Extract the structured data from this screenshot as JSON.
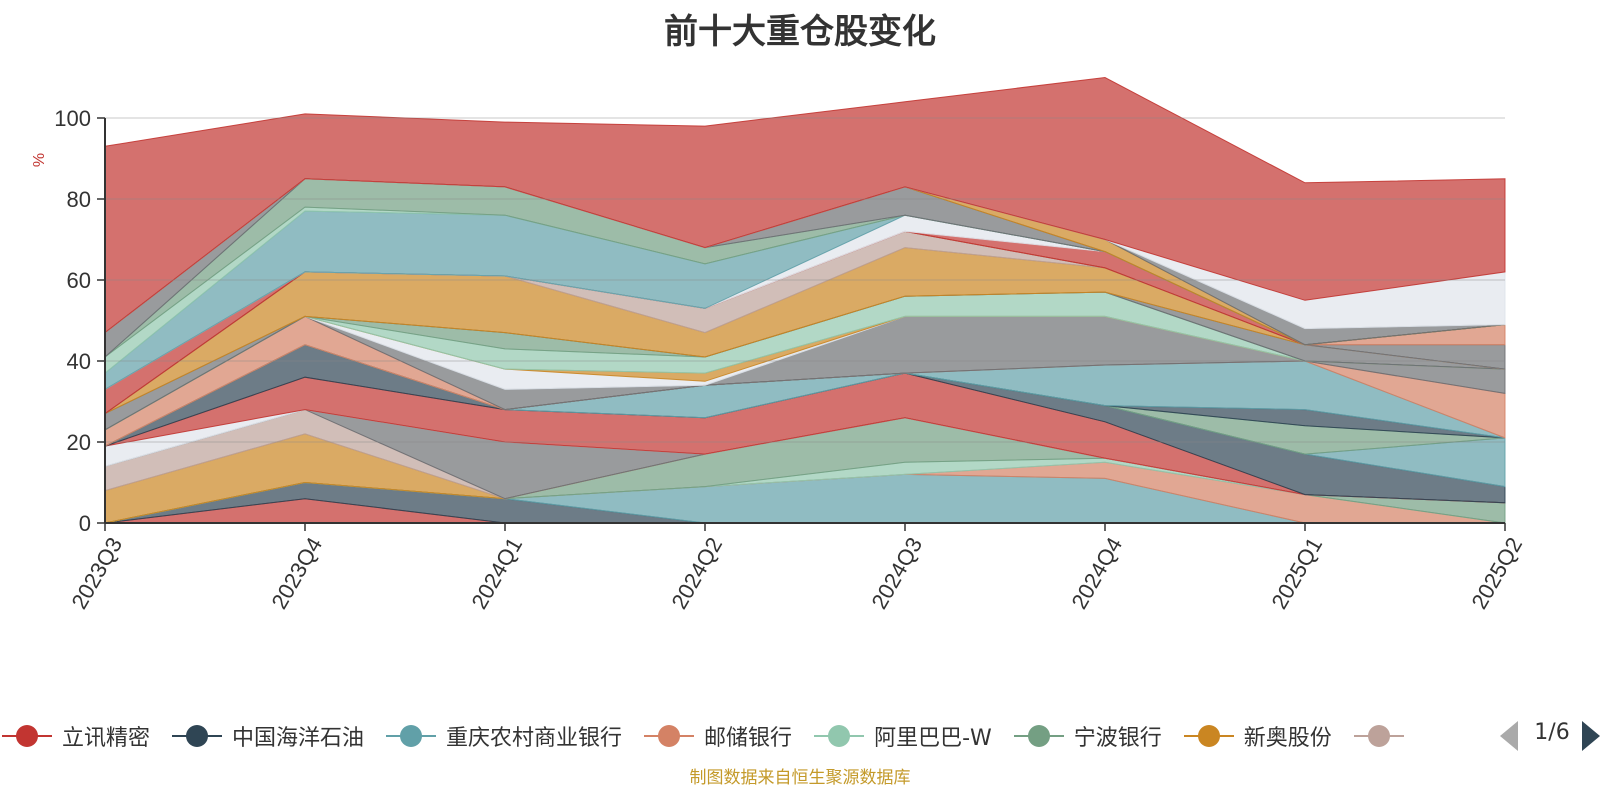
{
  "chart_data": {
    "type": "area",
    "title": "前十大重仓股变化",
    "ylabel": "%",
    "ylim": [
      0,
      100
    ],
    "yticks": [
      0,
      20,
      40,
      60,
      80,
      100
    ],
    "categories": [
      "2023Q3",
      "2023Q4",
      "2024Q1",
      "2024Q2",
      "2024Q3",
      "2024Q4",
      "2025Q1",
      "2025Q2"
    ],
    "series": [
      {
        "name": "立讯精密",
        "color": "#c23531",
        "values": [
          0,
          6,
          0,
          0,
          0,
          0,
          0,
          0
        ]
      },
      {
        "name": "中国海洋石油",
        "color": "#2f4554",
        "values": [
          0,
          4,
          6,
          0,
          0,
          0,
          0,
          0
        ]
      },
      {
        "name": "重庆农村商业银行",
        "color": "#61a0a8",
        "values": [
          0,
          0,
          0,
          9,
          12,
          11,
          0,
          0
        ]
      },
      {
        "name": "邮储银行",
        "color": "#d48265",
        "values": [
          0,
          0,
          0,
          0,
          0,
          4,
          7,
          0
        ]
      },
      {
        "name": "阿里巴巴-W",
        "color": "#91c7ae",
        "values": [
          0,
          0,
          0,
          0,
          3,
          1,
          0,
          0
        ]
      },
      {
        "name": "宁波银行",
        "color": "#749f83",
        "values": [
          0,
          0,
          0,
          8,
          11,
          0,
          0,
          5
        ]
      },
      {
        "name": "新奥股份",
        "color": "#ca8622",
        "values": [
          8,
          12,
          0,
          0,
          0,
          0,
          0,
          0
        ]
      },
      {
        "name": "",
        "color": "#bda29a",
        "values": [
          6,
          6,
          0,
          0,
          0,
          0,
          0,
          0
        ]
      },
      {
        "name": "",
        "color": "#6e7074",
        "values": [
          0,
          0,
          14,
          0,
          0,
          0,
          0,
          0
        ]
      },
      {
        "name": "",
        "color": "#dfe4eb",
        "values": [
          5,
          0,
          0,
          0,
          0,
          0,
          0,
          0
        ]
      },
      {
        "name": "",
        "color": "#c23531",
        "values": [
          0,
          8,
          8,
          9,
          11,
          9,
          0,
          0
        ]
      },
      {
        "name": "",
        "color": "#2f4554",
        "values": [
          0,
          8,
          0,
          0,
          0,
          4,
          10,
          4
        ]
      },
      {
        "name": "",
        "color": "#61a0a8",
        "values": [
          0,
          0,
          0,
          8,
          0,
          0,
          0,
          12
        ]
      },
      {
        "name": "",
        "color": "#749f83",
        "values": [
          0,
          0,
          0,
          0,
          0,
          0,
          7,
          0
        ]
      },
      {
        "name": "",
        "color": "#2f4554",
        "values": [
          0,
          0,
          0,
          0,
          0,
          0,
          4,
          0
        ]
      },
      {
        "name": "",
        "color": "#61a0a8",
        "values": [
          0,
          0,
          0,
          0,
          0,
          10,
          12,
          0
        ]
      },
      {
        "name": "",
        "color": "#d48265",
        "values": [
          4,
          7,
          0,
          0,
          0,
          0,
          0,
          11
        ]
      },
      {
        "name": "",
        "color": "#6e7074",
        "values": [
          0,
          0,
          5,
          0,
          14,
          12,
          0,
          6
        ]
      },
      {
        "name": "",
        "color": "#dfe4eb",
        "values": [
          0,
          0,
          5,
          1,
          0,
          0,
          0,
          0
        ]
      },
      {
        "name": "",
        "color": "#ca8622",
        "values": [
          0,
          0,
          0,
          2,
          0,
          0,
          0,
          0
        ]
      },
      {
        "name": "",
        "color": "#91c7ae",
        "values": [
          0,
          0,
          5,
          4,
          5,
          6,
          0,
          0
        ]
      },
      {
        "name": "",
        "color": "#749f83",
        "values": [
          0,
          0,
          4,
          0,
          0,
          0,
          0,
          0
        ]
      },
      {
        "name": "",
        "color": "#6e7074",
        "values": [
          4,
          0,
          0,
          0,
          0,
          0,
          4,
          0
        ]
      },
      {
        "name": "",
        "color": "#ca8622",
        "values": [
          0,
          11,
          14,
          6,
          12,
          6,
          0,
          0
        ]
      },
      {
        "name": "",
        "color": "#bda29a",
        "values": [
          0,
          0,
          0,
          6,
          4,
          0,
          0,
          0
        ]
      },
      {
        "name": "",
        "color": "#6e7074",
        "values": [
          0,
          0,
          0,
          0,
          0,
          0,
          0,
          6
        ]
      },
      {
        "name": "",
        "color": "#d48265",
        "values": [
          0,
          0,
          0,
          0,
          0,
          0,
          0,
          5
        ]
      },
      {
        "name": "",
        "color": "#c23531",
        "values": [
          6,
          0,
          0,
          0,
          0,
          4,
          0,
          0
        ]
      },
      {
        "name": "",
        "color": "#dfe4eb",
        "values": [
          0,
          0,
          0,
          0,
          4,
          0,
          0,
          0
        ]
      },
      {
        "name": "",
        "color": "#61a0a8",
        "values": [
          4,
          15,
          15,
          11,
          0,
          0,
          0,
          0
        ]
      },
      {
        "name": "",
        "color": "#91c7ae",
        "values": [
          4,
          1,
          0,
          0,
          0,
          0,
          0,
          0
        ]
      },
      {
        "name": "",
        "color": "#749f83",
        "values": [
          0,
          7,
          7,
          4,
          0,
          0,
          0,
          0
        ]
      },
      {
        "name": "",
        "color": "#6e7074",
        "values": [
          6,
          0,
          0,
          0,
          7,
          0,
          0,
          0
        ]
      },
      {
        "name": "",
        "color": "#ca8622",
        "values": [
          0,
          0,
          0,
          0,
          0,
          3,
          0,
          0
        ]
      },
      {
        "name": "",
        "color": "#6e7074",
        "values": [
          0,
          0,
          0,
          0,
          0,
          0,
          4,
          0
        ]
      },
      {
        "name": "",
        "color": "#dfe4eb",
        "values": [
          0,
          0,
          0,
          0,
          0,
          0,
          7,
          13
        ]
      },
      {
        "name": "",
        "color": "#c23531",
        "values": [
          46,
          16,
          16,
          30,
          21,
          40,
          29,
          23
        ]
      }
    ]
  },
  "legend": {
    "items": [
      {
        "label": "立讯精密",
        "color": "#c23531"
      },
      {
        "label": "中国海洋石油",
        "color": "#2f4554"
      },
      {
        "label": "重庆农村商业银行",
        "color": "#61a0a8"
      },
      {
        "label": "邮储银行",
        "color": "#d48265"
      },
      {
        "label": "阿里巴巴-W",
        "color": "#91c7ae"
      },
      {
        "label": "宁波银行",
        "color": "#749f83"
      },
      {
        "label": "新奥股份",
        "color": "#ca8622"
      },
      {
        "label": "",
        "color": "#bda29a"
      }
    ],
    "page": "1/6"
  },
  "source": "制图数据来自恒生聚源数据库"
}
